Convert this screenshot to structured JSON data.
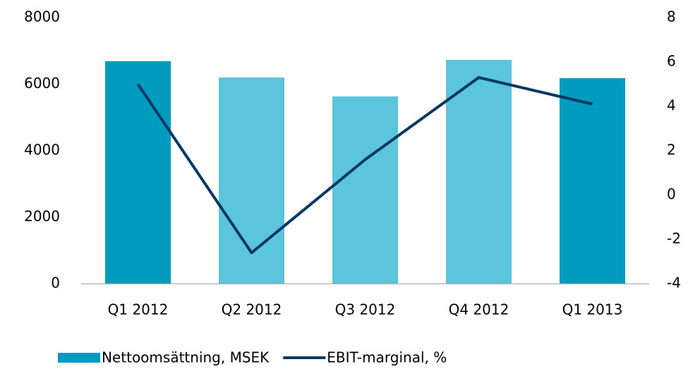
{
  "chart_data": {
    "type": "bar-line",
    "categories": [
      "Q1 2012",
      "Q2 2012",
      "Q3 2012",
      "Q4 2012",
      "Q1 2013"
    ],
    "series": [
      {
        "name": "Nettoomsättning, MSEK",
        "type": "bar",
        "color": "#0099c0",
        "colors": [
          "#009bbf",
          "#5bc5dc",
          "#5bc5dc",
          "#5bc5dc",
          "#009bbf"
        ],
        "values": [
          6690,
          6200,
          5630,
          6730,
          6180
        ]
      },
      {
        "name": "EBIT-marginal, %",
        "type": "line",
        "axis": "y2",
        "color": "#003865",
        "values": [
          5.0,
          -2.6,
          1.6,
          5.3,
          4.1
        ]
      }
    ],
    "ylim": [
      0,
      8000
    ],
    "yticks": [
      0,
      2000,
      4000,
      6000,
      8000
    ],
    "y2lim": [
      -4,
      8
    ],
    "y2ticks": [
      -4,
      -2,
      0,
      2,
      4,
      6,
      8
    ],
    "grid": false,
    "legend": "bottom"
  }
}
